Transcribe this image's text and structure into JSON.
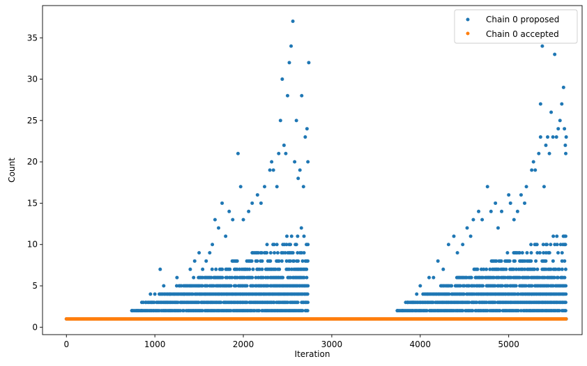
{
  "chart_data": {
    "type": "scatter",
    "xlabel": "Iteration",
    "ylabel": "Count",
    "xlim": [
      -270,
      5830
    ],
    "ylim": [
      -0.9,
      38.9
    ],
    "xticks": [
      0,
      1000,
      2000,
      3000,
      4000,
      5000
    ],
    "yticks": [
      0,
      5,
      10,
      15,
      20,
      25,
      30,
      35
    ],
    "grid": false,
    "legend_position": "top-right",
    "series": [
      {
        "name": "Chain 0 proposed",
        "color": "#1f77b4",
        "marker": "circle",
        "segments": [
          {
            "x_start": 0,
            "x_end": 700,
            "step": 10,
            "value": 1
          },
          {
            "x_start": 710,
            "x_end": 3700,
            "step": 10,
            "value": 1
          },
          {
            "x_start": 3710,
            "x_end": 5650,
            "step": 10,
            "value": 1
          }
        ],
        "clusters": [
          {
            "x_start": 740,
            "x_end": 2740,
            "x_step": 14,
            "max_start": 2,
            "max_end": 12
          },
          {
            "x_start": 3740,
            "x_end": 5650,
            "x_step": 14,
            "max_start": 2,
            "max_end": 12
          }
        ],
        "outliers": [
          [
            740,
            2
          ],
          [
            800,
            2
          ],
          [
            850,
            2
          ],
          [
            900,
            3
          ],
          [
            950,
            4
          ],
          [
            1000,
            4
          ],
          [
            1060,
            7
          ],
          [
            1100,
            5
          ],
          [
            1170,
            4
          ],
          [
            1250,
            6
          ],
          [
            1330,
            4
          ],
          [
            1400,
            7
          ],
          [
            1450,
            8
          ],
          [
            1500,
            9
          ],
          [
            1540,
            7
          ],
          [
            1580,
            8
          ],
          [
            1620,
            9
          ],
          [
            1650,
            10
          ],
          [
            1680,
            13
          ],
          [
            1720,
            12
          ],
          [
            1760,
            15
          ],
          [
            1800,
            11
          ],
          [
            1840,
            14
          ],
          [
            1880,
            13
          ],
          [
            1940,
            21
          ],
          [
            1970,
            17
          ],
          [
            2000,
            13
          ],
          [
            2060,
            14
          ],
          [
            2100,
            15
          ],
          [
            2160,
            16
          ],
          [
            2200,
            15
          ],
          [
            2240,
            17
          ],
          [
            2300,
            19
          ],
          [
            2320,
            20
          ],
          [
            2340,
            19
          ],
          [
            2380,
            17
          ],
          [
            2400,
            21
          ],
          [
            2420,
            25
          ],
          [
            2440,
            30
          ],
          [
            2460,
            22
          ],
          [
            2480,
            21
          ],
          [
            2500,
            28
          ],
          [
            2520,
            32
          ],
          [
            2540,
            34
          ],
          [
            2560,
            37
          ],
          [
            2580,
            20
          ],
          [
            2600,
            25
          ],
          [
            2620,
            18
          ],
          [
            2640,
            19
          ],
          [
            2660,
            28
          ],
          [
            2680,
            17
          ],
          [
            2700,
            23
          ],
          [
            2720,
            24
          ],
          [
            2740,
            32
          ],
          [
            2730,
            20
          ],
          [
            3740,
            2
          ],
          [
            3800,
            2
          ],
          [
            3860,
            3
          ],
          [
            3920,
            3
          ],
          [
            3960,
            4
          ],
          [
            4000,
            5
          ],
          [
            4100,
            6
          ],
          [
            4150,
            6
          ],
          [
            4200,
            8
          ],
          [
            4260,
            7
          ],
          [
            4320,
            10
          ],
          [
            4380,
            11
          ],
          [
            4420,
            9
          ],
          [
            4480,
            10
          ],
          [
            4530,
            12
          ],
          [
            4570,
            11
          ],
          [
            4600,
            13
          ],
          [
            4660,
            14
          ],
          [
            4700,
            13
          ],
          [
            4760,
            17
          ],
          [
            4800,
            14
          ],
          [
            4850,
            15
          ],
          [
            4880,
            12
          ],
          [
            4920,
            14
          ],
          [
            5000,
            16
          ],
          [
            5020,
            15
          ],
          [
            5060,
            13
          ],
          [
            5100,
            14
          ],
          [
            5140,
            16
          ],
          [
            5180,
            15
          ],
          [
            5200,
            17
          ],
          [
            5260,
            19
          ],
          [
            5280,
            20
          ],
          [
            5300,
            19
          ],
          [
            5340,
            21
          ],
          [
            5360,
            23
          ],
          [
            5380,
            34
          ],
          [
            5400,
            17
          ],
          [
            5420,
            22
          ],
          [
            5440,
            23
          ],
          [
            5460,
            21
          ],
          [
            5480,
            26
          ],
          [
            5500,
            23
          ],
          [
            5520,
            33
          ],
          [
            5540,
            23
          ],
          [
            5560,
            24
          ],
          [
            5580,
            25
          ],
          [
            5600,
            27
          ],
          [
            5620,
            29
          ],
          [
            5640,
            22
          ],
          [
            5650,
            23
          ],
          [
            5630,
            24
          ],
          [
            5645,
            21
          ],
          [
            5360,
            27
          ]
        ]
      },
      {
        "name": "Chain 0 accepted",
        "color": "#ff7f0e",
        "marker": "circle",
        "segments": [
          {
            "x_start": 0,
            "x_end": 5650,
            "step": 8,
            "value": 1
          }
        ]
      }
    ]
  }
}
